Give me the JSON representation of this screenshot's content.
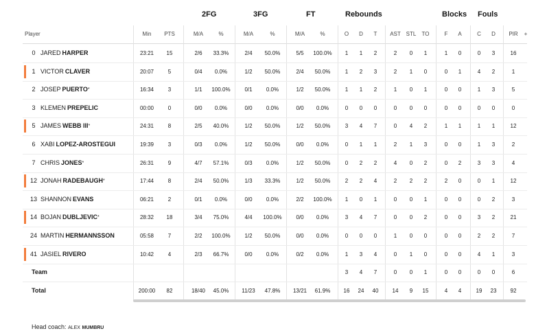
{
  "groups": {
    "fg2": "2FG",
    "fg3": "3FG",
    "ft": "FT",
    "reb": "Rebounds",
    "blocks": "Blocks",
    "fouls": "Fouls"
  },
  "headers": {
    "player": "Player",
    "min": "Min",
    "pts": "PTS",
    "fg2_ma": "M/A",
    "fg2_pct": "%",
    "fg3_ma": "M/A",
    "fg3_pct": "%",
    "ft_ma": "M/A",
    "ft_pct": "%",
    "o": "O",
    "d": "D",
    "t": "T",
    "ast": "AST",
    "stl": "STL",
    "to": "TO",
    "bf": "F",
    "ba": "A",
    "fc": "C",
    "fd": "D",
    "pir": "PIR",
    "plus": "+"
  },
  "players": [
    {
      "num": "0",
      "first": "JARED",
      "last": "HARPER",
      "star": "",
      "starter": false,
      "min": "23:21",
      "pts": "15",
      "fg2_ma": "2/6",
      "fg2_pct": "33.3%",
      "fg3_ma": "2/4",
      "fg3_pct": "50.0%",
      "ft_ma": "5/5",
      "ft_pct": "100.0%",
      "o": "1",
      "d": "1",
      "t": "2",
      "ast": "2",
      "stl": "0",
      "to": "1",
      "bf": "1",
      "ba": "0",
      "fc": "0",
      "fd": "3",
      "pir": "16"
    },
    {
      "num": "1",
      "first": "VICTOR",
      "last": "CLAVER",
      "star": "",
      "starter": true,
      "min": "20:07",
      "pts": "5",
      "fg2_ma": "0/4",
      "fg2_pct": "0.0%",
      "fg3_ma": "1/2",
      "fg3_pct": "50.0%",
      "ft_ma": "2/4",
      "ft_pct": "50.0%",
      "o": "1",
      "d": "2",
      "t": "3",
      "ast": "2",
      "stl": "1",
      "to": "0",
      "bf": "0",
      "ba": "1",
      "fc": "4",
      "fd": "2",
      "pir": "1"
    },
    {
      "num": "2",
      "first": "JOSEP",
      "last": "PUERTO",
      "star": "*",
      "starter": false,
      "min": "16:34",
      "pts": "3",
      "fg2_ma": "1/1",
      "fg2_pct": "100.0%",
      "fg3_ma": "0/1",
      "fg3_pct": "0.0%",
      "ft_ma": "1/2",
      "ft_pct": "50.0%",
      "o": "1",
      "d": "1",
      "t": "2",
      "ast": "1",
      "stl": "0",
      "to": "1",
      "bf": "0",
      "ba": "0",
      "fc": "1",
      "fd": "3",
      "pir": "5"
    },
    {
      "num": "3",
      "first": "KLEMEN",
      "last": "PREPELIC",
      "star": "",
      "starter": false,
      "min": "00:00",
      "pts": "0",
      "fg2_ma": "0/0",
      "fg2_pct": "0.0%",
      "fg3_ma": "0/0",
      "fg3_pct": "0.0%",
      "ft_ma": "0/0",
      "ft_pct": "0.0%",
      "o": "0",
      "d": "0",
      "t": "0",
      "ast": "0",
      "stl": "0",
      "to": "0",
      "bf": "0",
      "ba": "0",
      "fc": "0",
      "fd": "0",
      "pir": "0"
    },
    {
      "num": "5",
      "first": "JAMES",
      "last": "WEBB III",
      "star": "*",
      "starter": true,
      "min": "24:31",
      "pts": "8",
      "fg2_ma": "2/5",
      "fg2_pct": "40.0%",
      "fg3_ma": "1/2",
      "fg3_pct": "50.0%",
      "ft_ma": "1/2",
      "ft_pct": "50.0%",
      "o": "3",
      "d": "4",
      "t": "7",
      "ast": "0",
      "stl": "4",
      "to": "2",
      "bf": "1",
      "ba": "1",
      "fc": "1",
      "fd": "1",
      "pir": "12"
    },
    {
      "num": "6",
      "first": "XABI",
      "last": "LOPEZ-AROSTEGUI",
      "star": "",
      "starter": false,
      "min": "19:39",
      "pts": "3",
      "fg2_ma": "0/3",
      "fg2_pct": "0.0%",
      "fg3_ma": "1/2",
      "fg3_pct": "50.0%",
      "ft_ma": "0/0",
      "ft_pct": "0.0%",
      "o": "0",
      "d": "1",
      "t": "1",
      "ast": "2",
      "stl": "1",
      "to": "3",
      "bf": "0",
      "ba": "0",
      "fc": "1",
      "fd": "3",
      "pir": "2"
    },
    {
      "num": "7",
      "first": "CHRIS",
      "last": "JONES",
      "star": "*",
      "starter": false,
      "min": "26:31",
      "pts": "9",
      "fg2_ma": "4/7",
      "fg2_pct": "57.1%",
      "fg3_ma": "0/3",
      "fg3_pct": "0.0%",
      "ft_ma": "1/2",
      "ft_pct": "50.0%",
      "o": "0",
      "d": "2",
      "t": "2",
      "ast": "4",
      "stl": "0",
      "to": "2",
      "bf": "0",
      "ba": "2",
      "fc": "3",
      "fd": "3",
      "pir": "4"
    },
    {
      "num": "12",
      "first": "JONAH",
      "last": "RADEBAUGH",
      "star": "*",
      "starter": true,
      "min": "17:44",
      "pts": "8",
      "fg2_ma": "2/4",
      "fg2_pct": "50.0%",
      "fg3_ma": "1/3",
      "fg3_pct": "33.3%",
      "ft_ma": "1/2",
      "ft_pct": "50.0%",
      "o": "2",
      "d": "2",
      "t": "4",
      "ast": "2",
      "stl": "2",
      "to": "2",
      "bf": "2",
      "ba": "0",
      "fc": "0",
      "fd": "1",
      "pir": "12"
    },
    {
      "num": "13",
      "first": "SHANNON",
      "last": "EVANS",
      "star": "",
      "starter": false,
      "min": "06:21",
      "pts": "2",
      "fg2_ma": "0/1",
      "fg2_pct": "0.0%",
      "fg3_ma": "0/0",
      "fg3_pct": "0.0%",
      "ft_ma": "2/2",
      "ft_pct": "100.0%",
      "o": "1",
      "d": "0",
      "t": "1",
      "ast": "0",
      "stl": "0",
      "to": "1",
      "bf": "0",
      "ba": "0",
      "fc": "0",
      "fd": "2",
      "pir": "3"
    },
    {
      "num": "14",
      "first": "BOJAN",
      "last": "DUBLJEVIC",
      "star": "*",
      "starter": true,
      "min": "28:32",
      "pts": "18",
      "fg2_ma": "3/4",
      "fg2_pct": "75.0%",
      "fg3_ma": "4/4",
      "fg3_pct": "100.0%",
      "ft_ma": "0/0",
      "ft_pct": "0.0%",
      "o": "3",
      "d": "4",
      "t": "7",
      "ast": "0",
      "stl": "0",
      "to": "2",
      "bf": "0",
      "ba": "0",
      "fc": "3",
      "fd": "2",
      "pir": "21"
    },
    {
      "num": "24",
      "first": "MARTIN",
      "last": "HERMANNSSON",
      "star": "",
      "starter": false,
      "min": "05:58",
      "pts": "7",
      "fg2_ma": "2/2",
      "fg2_pct": "100.0%",
      "fg3_ma": "1/2",
      "fg3_pct": "50.0%",
      "ft_ma": "0/0",
      "ft_pct": "0.0%",
      "o": "0",
      "d": "0",
      "t": "0",
      "ast": "1",
      "stl": "0",
      "to": "0",
      "bf": "0",
      "ba": "0",
      "fc": "2",
      "fd": "2",
      "pir": "7"
    },
    {
      "num": "41",
      "first": "JASIEL",
      "last": "RIVERO",
      "star": "",
      "starter": true,
      "min": "10:42",
      "pts": "4",
      "fg2_ma": "2/3",
      "fg2_pct": "66.7%",
      "fg3_ma": "0/0",
      "fg3_pct": "0.0%",
      "ft_ma": "0/2",
      "ft_pct": "0.0%",
      "o": "1",
      "d": "3",
      "t": "4",
      "ast": "0",
      "stl": "1",
      "to": "0",
      "bf": "0",
      "ba": "0",
      "fc": "4",
      "fd": "1",
      "pir": "3"
    }
  ],
  "team": {
    "label": "Team",
    "min": "",
    "pts": "",
    "fg2_ma": "",
    "fg2_pct": "",
    "fg3_ma": "",
    "fg3_pct": "",
    "ft_ma": "",
    "ft_pct": "",
    "o": "3",
    "d": "4",
    "t": "7",
    "ast": "0",
    "stl": "0",
    "to": "1",
    "bf": "0",
    "ba": "0",
    "fc": "0",
    "fd": "0",
    "pir": "6"
  },
  "total": {
    "label": "Total",
    "min": "200:00",
    "pts": "82",
    "fg2_ma": "18/40",
    "fg2_pct": "45.0%",
    "fg3_ma": "11/23",
    "fg3_pct": "47.8%",
    "ft_ma": "13/21",
    "ft_pct": "61.9%",
    "o": "16",
    "d": "24",
    "t": "40",
    "ast": "14",
    "stl": "9",
    "to": "15",
    "bf": "4",
    "ba": "4",
    "fc": "19",
    "fd": "23",
    "pir": "92"
  },
  "coach": {
    "label": "Head coach:",
    "first": "ALEX",
    "last": "MUMBRU"
  },
  "colors": {
    "starter_marker": "#f27b3a"
  }
}
